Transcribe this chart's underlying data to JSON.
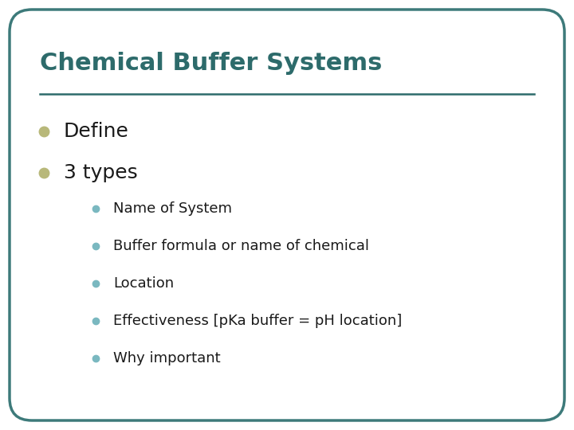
{
  "title": "Chemical Buffer Systems",
  "title_color": "#2d6b6b",
  "title_fontsize": 22,
  "title_bold": true,
  "background_color": "#ffffff",
  "border_color": "#3d7a7a",
  "border_linewidth": 2.5,
  "line_color": "#2d6b6b",
  "bullet1_text": "Define",
  "bullet2_text": "3 types",
  "bullet1_color": "#b8b87a",
  "bullet2_color": "#b8b87a",
  "bullet_fontsize": 18,
  "bullet_text_color": "#1a1a1a",
  "sub_bullet_color": "#7ab8c0",
  "sub_bullet_fontsize": 13,
  "sub_bullet_text_color": "#1a1a1a",
  "sub_bullets": [
    "Name of System",
    "Buffer formula or name of chemical",
    "Location",
    "Effectiveness [pKa buffer = pH location]",
    "Why important"
  ]
}
